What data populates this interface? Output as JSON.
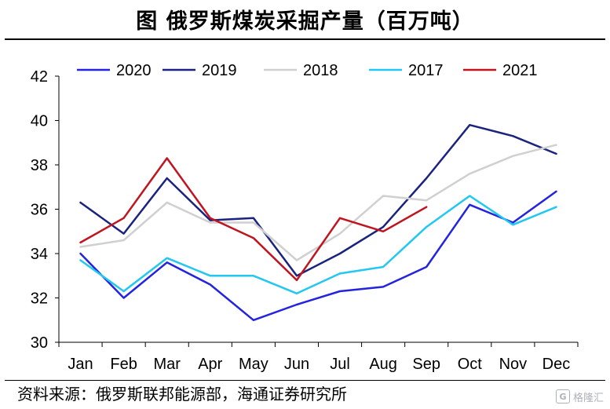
{
  "title": "图  俄罗斯煤炭采掘产量（百万吨）",
  "source": "资料来源：俄罗斯联邦能源部，海通证券研究所",
  "watermark": "格隆汇",
  "chart_data": {
    "type": "line",
    "title": "图  俄罗斯煤炭采掘产量（百万吨）",
    "xlabel": "",
    "ylabel": "",
    "categories": [
      "Jan",
      "Feb",
      "Mar",
      "Apr",
      "May",
      "Jun",
      "Jul",
      "Aug",
      "Sep",
      "Oct",
      "Nov",
      "Dec"
    ],
    "ylim": [
      30,
      42
    ],
    "yticks": [
      "30",
      "32",
      "34",
      "36",
      "38",
      "40",
      "42"
    ],
    "grid": false,
    "legend_position": "top",
    "series": [
      {
        "name": "2020",
        "color": "#2323e0",
        "values": [
          34.0,
          32.0,
          33.6,
          32.6,
          31.0,
          31.7,
          32.3,
          32.5,
          33.4,
          36.2,
          35.4,
          36.8
        ]
      },
      {
        "name": "2019",
        "color": "#1a237e",
        "values": [
          36.3,
          34.9,
          37.4,
          35.5,
          35.6,
          33.0,
          34.0,
          35.2,
          37.4,
          39.8,
          39.3,
          38.5
        ]
      },
      {
        "name": "2018",
        "color": "#d0d0d0",
        "values": [
          34.3,
          34.6,
          36.3,
          35.4,
          35.4,
          33.7,
          34.9,
          36.6,
          36.4,
          37.6,
          38.4,
          38.9
        ]
      },
      {
        "name": "2017",
        "color": "#22c8f0",
        "values": [
          33.7,
          32.3,
          33.8,
          33.0,
          33.0,
          32.2,
          33.1,
          33.4,
          35.2,
          36.6,
          35.3,
          36.1
        ]
      },
      {
        "name": "2021",
        "color": "#c0141e",
        "values": [
          34.5,
          35.6,
          38.3,
          35.6,
          34.7,
          32.8,
          35.6,
          35.0,
          36.1,
          null,
          null,
          null
        ]
      }
    ]
  }
}
